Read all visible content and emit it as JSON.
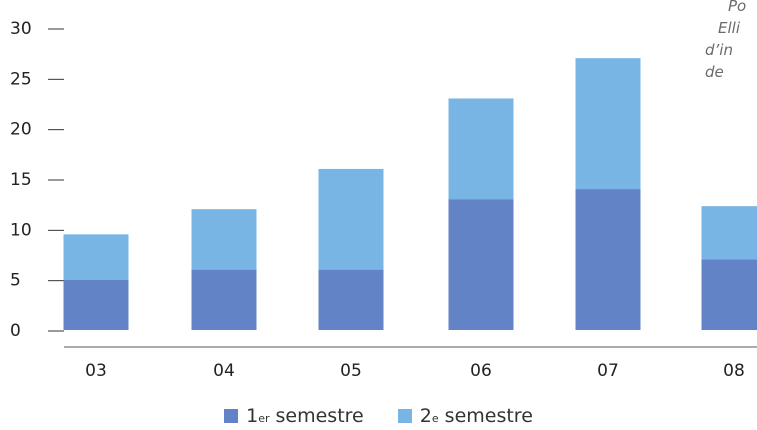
{
  "chart_data": {
    "type": "bar",
    "stacked": true,
    "categories": [
      "03",
      "04",
      "05",
      "06",
      "07",
      "08"
    ],
    "series": [
      {
        "name": "1er semestre",
        "legend_main": "1",
        "legend_sup": "er",
        "legend_rest": " semestre",
        "color": "#6283c5",
        "values": [
          5,
          6,
          6,
          13,
          14,
          7
        ]
      },
      {
        "name": "2e semestre",
        "legend_main": "2",
        "legend_sup": "e",
        "legend_rest": " semestre",
        "color": "#78b5e4",
        "values": [
          4.5,
          6,
          10,
          10,
          13,
          5.3
        ]
      }
    ],
    "ylim": [
      0,
      30
    ],
    "yticks": [
      "0",
      "5",
      "10",
      "15",
      "20",
      "25",
      "30"
    ],
    "title": "",
    "xlabel": "",
    "ylabel": "",
    "grid": false,
    "legend_position": "bottom-center",
    "annotation_lines": [
      "Po",
      "Elli",
      "d’in",
      "de"
    ]
  }
}
